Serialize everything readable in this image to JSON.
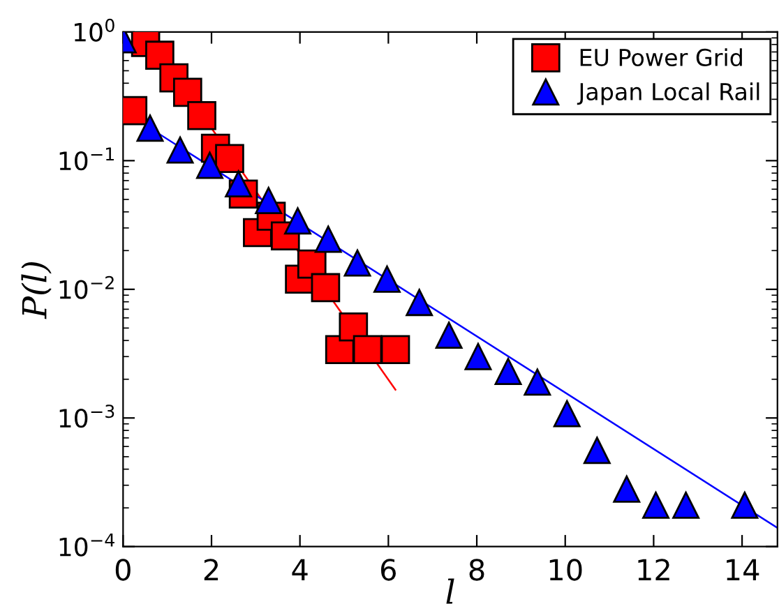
{
  "chart_data": {
    "type": "scatter",
    "xlabel": "l",
    "ylabel": "P(l)",
    "log": "y",
    "xlim": [
      0,
      14.8
    ],
    "ylim": [
      0.0001,
      1
    ],
    "xticks": [
      0,
      2,
      4,
      6,
      8,
      10,
      12,
      14
    ],
    "yticks": [
      {
        "value": 0.0001,
        "label": "10$^{−4}$"
      },
      {
        "value": 0.001,
        "label": "10$^{−3}$"
      },
      {
        "value": 0.01,
        "label": "10$^{−2}$"
      },
      {
        "value": 0.1,
        "label": "10$^{−1}$"
      },
      {
        "value": 1,
        "label": "10$^{0}$"
      }
    ],
    "grid": false,
    "legend": "top right",
    "series": [
      {
        "name": "EU Power Grid",
        "marker": "square",
        "color": "#ff0000",
        "x": [
          0.22,
          0.51,
          0.83,
          1.15,
          1.46,
          1.78,
          2.09,
          2.41,
          2.72,
          3.04,
          3.35,
          3.67,
          3.99,
          4.27,
          4.58,
          4.9,
          5.21,
          5.53,
          6.16
        ],
        "values": [
          0.245,
          0.83,
          0.66,
          0.44,
          0.34,
          0.224,
          0.125,
          0.104,
          0.055,
          0.0276,
          0.037,
          0.026,
          0.012,
          0.0157,
          0.0103,
          0.0034,
          0.0051,
          0.0034,
          0.0034
        ]
      },
      {
        "name": "Japan Local Rail",
        "marker": "triangle",
        "color": "#0000ff",
        "x": [
          0,
          0.61,
          1.29,
          1.96,
          2.61,
          3.29,
          3.95,
          4.64,
          5.3,
          5.97,
          6.7,
          7.37,
          8.03,
          8.71,
          9.37,
          10.04,
          10.72,
          11.39,
          12.05,
          12.73,
          14.06
        ],
        "values": [
          0.87,
          0.179,
          0.121,
          0.092,
          0.066,
          0.049,
          0.034,
          0.0245,
          0.016,
          0.012,
          0.0079,
          0.0044,
          0.003,
          0.0023,
          0.0019,
          0.00108,
          0.00056,
          0.00028,
          0.00021,
          0.00021,
          0.00021
        ]
      },
      {
        "type": "line",
        "color": "#ff0000",
        "x": [
          1.9,
          6.16
        ],
        "values": [
          0.2,
          0.00166
        ]
      },
      {
        "type": "line",
        "color": "#0000ff",
        "x": [
          0.61,
          14.8
        ],
        "values": [
          0.179,
          0.00014
        ]
      }
    ]
  }
}
